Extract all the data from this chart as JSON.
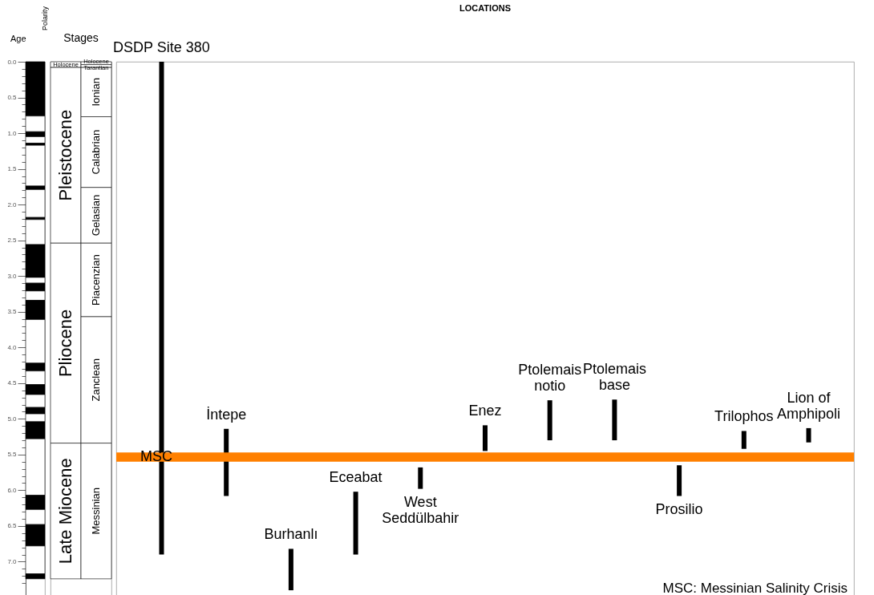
{
  "chart_data": [
    {
      "type": "bar",
      "title": "Polarity",
      "ylabel": "Age",
      "categories": [
        null
      ],
      "stacked": true,
      "ylim": [
        7.5,
        0
      ],
      "yticks": [
        {
          "value": 0,
          "label": "0.0"
        },
        {
          "value": 0.1,
          "label": null
        },
        {
          "value": 0.2,
          "label": null
        },
        {
          "value": 0.3,
          "label": null
        },
        {
          "value": 0.4,
          "label": null
        },
        {
          "value": 0.5,
          "label": "0.5"
        },
        {
          "value": 0.6,
          "label": null
        },
        {
          "value": 0.7,
          "label": null
        },
        {
          "value": 0.8,
          "label": null
        },
        {
          "value": 0.9,
          "label": null
        },
        {
          "value": 1,
          "label": "1.0"
        },
        {
          "value": 1.1,
          "label": null
        },
        {
          "value": 1.2,
          "label": null
        },
        {
          "value": 1.3,
          "label": null
        },
        {
          "value": 1.4,
          "label": null
        },
        {
          "value": 1.5,
          "label": "1.5"
        },
        {
          "value": 1.6,
          "label": null
        },
        {
          "value": 1.7,
          "label": null
        },
        {
          "value": 1.8,
          "label": null
        },
        {
          "value": 1.9,
          "label": null
        },
        {
          "value": 2,
          "label": "2.0"
        },
        {
          "value": 2.1,
          "label": null
        },
        {
          "value": 2.2,
          "label": null
        },
        {
          "value": 2.3,
          "label": null
        },
        {
          "value": 2.4,
          "label": null
        },
        {
          "value": 2.5,
          "label": "2.5"
        },
        {
          "value": 2.6,
          "label": null
        },
        {
          "value": 2.7,
          "label": null
        },
        {
          "value": 2.8,
          "label": null
        },
        {
          "value": 2.9,
          "label": null
        },
        {
          "value": 3,
          "label": "3.0"
        },
        {
          "value": 3.1,
          "label": null
        },
        {
          "value": 3.2,
          "label": null
        },
        {
          "value": 3.3,
          "label": null
        },
        {
          "value": 3.4,
          "label": null
        },
        {
          "value": 3.5,
          "label": "3.5"
        },
        {
          "value": 3.6,
          "label": null
        },
        {
          "value": 3.7,
          "label": null
        },
        {
          "value": 3.8,
          "label": null
        },
        {
          "value": 3.9,
          "label": null
        },
        {
          "value": 4,
          "label": "4.0"
        },
        {
          "value": 4.1,
          "label": null
        },
        {
          "value": 4.2,
          "label": null
        },
        {
          "value": 4.3,
          "label": null
        },
        {
          "value": 4.4,
          "label": null
        },
        {
          "value": 4.5,
          "label": "4.5"
        },
        {
          "value": 4.6,
          "label": null
        },
        {
          "value": 4.7,
          "label": null
        },
        {
          "value": 4.8,
          "label": null
        },
        {
          "value": 4.9,
          "label": null
        },
        {
          "value": 5,
          "label": "5.0"
        },
        {
          "value": 5.1,
          "label": null
        },
        {
          "value": 5.2,
          "label": null
        },
        {
          "value": 5.3,
          "label": null
        },
        {
          "value": 5.4,
          "label": null
        },
        {
          "value": 5.5,
          "label": "5.5"
        },
        {
          "value": 5.6,
          "label": null
        },
        {
          "value": 5.7,
          "label": null
        },
        {
          "value": 5.8,
          "label": null
        },
        {
          "value": 5.9,
          "label": null
        },
        {
          "value": 6,
          "label": "6.0"
        },
        {
          "value": 6.1,
          "label": null
        },
        {
          "value": 6.2,
          "label": null
        },
        {
          "value": 6.3,
          "label": null
        },
        {
          "value": 6.4,
          "label": null
        },
        {
          "value": 6.5,
          "label": "6.5"
        },
        {
          "value": 6.6,
          "label": null
        },
        {
          "value": 6.7,
          "label": null
        },
        {
          "value": 6.8,
          "label": null
        },
        {
          "value": 6.9,
          "label": null
        },
        {
          "value": 7,
          "label": "7.0"
        },
        {
          "value": 7.1,
          "label": null
        },
        {
          "value": 7.2,
          "label": null
        },
        {
          "value": 7.3,
          "label": null
        }
      ],
      "series": [
        {
          "color": "#000000",
          "values": [
            0.76
          ]
        },
        {
          "color": "#ffffff",
          "values": [
            0.22
          ]
        },
        {
          "color": "#000000",
          "values": [
            0.07
          ]
        },
        {
          "color": "#ffffff",
          "values": [
            0.09
          ]
        },
        {
          "color": "#000000",
          "values": [
            0.03
          ]
        },
        {
          "color": "#ffffff",
          "values": [
            0.57
          ]
        },
        {
          "color": "#000000",
          "values": [
            0.05
          ]
        },
        {
          "color": "#ffffff",
          "values": [
            0.39
          ]
        },
        {
          "color": "#000000",
          "values": [
            0.03
          ]
        },
        {
          "color": "#ffffff",
          "values": [
            0.35
          ]
        },
        {
          "color": "#000000",
          "values": [
            0.46
          ]
        },
        {
          "color": "#ffffff",
          "values": [
            0.08
          ]
        },
        {
          "color": "#000000",
          "values": [
            0.11
          ]
        },
        {
          "color": "#ffffff",
          "values": [
            0.13
          ]
        },
        {
          "color": "#000000",
          "values": [
            0.27
          ]
        },
        {
          "color": "#ffffff",
          "values": [
            0.61
          ]
        },
        {
          "color": "#000000",
          "values": [
            0.11
          ]
        },
        {
          "color": "#ffffff",
          "values": [
            0.19
          ]
        },
        {
          "color": "#000000",
          "values": [
            0.14
          ]
        },
        {
          "color": "#ffffff",
          "values": [
            0.18
          ]
        },
        {
          "color": "#000000",
          "values": [
            0.09
          ]
        },
        {
          "color": "#ffffff",
          "values": [
            0.11
          ]
        },
        {
          "color": "#000000",
          "values": [
            0.24
          ]
        },
        {
          "color": "#ffffff",
          "values": [
            0.79
          ]
        },
        {
          "color": "#000000",
          "values": [
            0.2
          ]
        },
        {
          "color": "#ffffff",
          "values": [
            0.21
          ]
        },
        {
          "color": "#000000",
          "values": [
            0.3
          ]
        },
        {
          "color": "#ffffff",
          "values": [
            0.39
          ]
        },
        {
          "color": "#000000",
          "values": [
            0.07
          ]
        }
      ]
    },
    {
      "type": "bar",
      "title": "Stages",
      "categories": [
        null,
        null
      ],
      "stacked": true,
      "ylim": [
        7.5,
        0
      ],
      "tick_labels": false,
      "series": [
        {
          "color": "#ffffff",
          "values": [
            0.08,
            null
          ],
          "value_labels": [
            "Holocene",
            null
          ]
        },
        {
          "color": "#ffffff",
          "values": [
            2.46,
            null
          ],
          "value_labels": [
            "Pleistocene",
            null
          ]
        },
        {
          "color": "#ffffff",
          "values": [
            2.8,
            null
          ],
          "value_labels": [
            "Pliocene",
            null
          ]
        },
        {
          "color": "#ffffff",
          "values": [
            1.9,
            null
          ],
          "value_labels": [
            "Late Miocene",
            null
          ]
        },
        {
          "color": "#ffffff",
          "values": [
            null,
            0.04
          ],
          "value_labels": [
            null,
            "Holocene"
          ]
        },
        {
          "color": "#ffffff",
          "values": [
            null,
            0.04
          ],
          "value_labels": [
            null,
            "Tarantian"
          ]
        },
        {
          "color": "#ffffff",
          "values": [
            null,
            0.69
          ],
          "value_labels": [
            null,
            "Ionian"
          ]
        },
        {
          "color": "#ffffff",
          "values": [
            null,
            0.99
          ],
          "value_labels": [
            null,
            "Calabrian"
          ]
        },
        {
          "color": "#ffffff",
          "values": [
            null,
            0.78
          ],
          "value_labels": [
            null,
            "Gelasian"
          ]
        },
        {
          "color": "#ffffff",
          "values": [
            null,
            1.03
          ],
          "value_labels": [
            null,
            "Piacenzian"
          ]
        },
        {
          "color": "#ffffff",
          "values": [
            null,
            1.77
          ],
          "value_labels": [
            null,
            "Zanclean"
          ]
        },
        {
          "color": "#ffffff",
          "values": [
            null,
            1.9
          ],
          "value_labels": [
            null,
            "Messinian"
          ]
        }
      ]
    },
    {
      "type": "bar",
      "title": "LOCATIONS",
      "categories": [
        "DSDP Site 380",
        "İntepe",
        "Burhanlı",
        "Eceabat",
        "West Seddülbahir",
        "Enez",
        "Ptolemais notio",
        "Ptolemais base",
        "Prosilio",
        "Trilophos",
        "Lion of Amphipoli"
      ],
      "base": [
        0,
        5.14,
        6.82,
        6.02,
        5.68,
        5.09,
        4.74,
        4.73,
        5.65,
        5.17,
        5.13
      ],
      "values": [
        6.9,
        0.94,
        0.58,
        0.88,
        0.3,
        0.36,
        0.56,
        0.57,
        0.43,
        0.25,
        0.2
      ],
      "color": "#000000",
      "ylim": [
        7.5,
        0
      ],
      "tick_labels": "x",
      "bands": [
        {
          "axis": "y",
          "from": 5.47,
          "to": 5.6,
          "label": "MSC",
          "color": "#ff8000"
        }
      ],
      "annotations": [
        "MSC: Messinian Salinity Crisis"
      ]
    }
  ]
}
